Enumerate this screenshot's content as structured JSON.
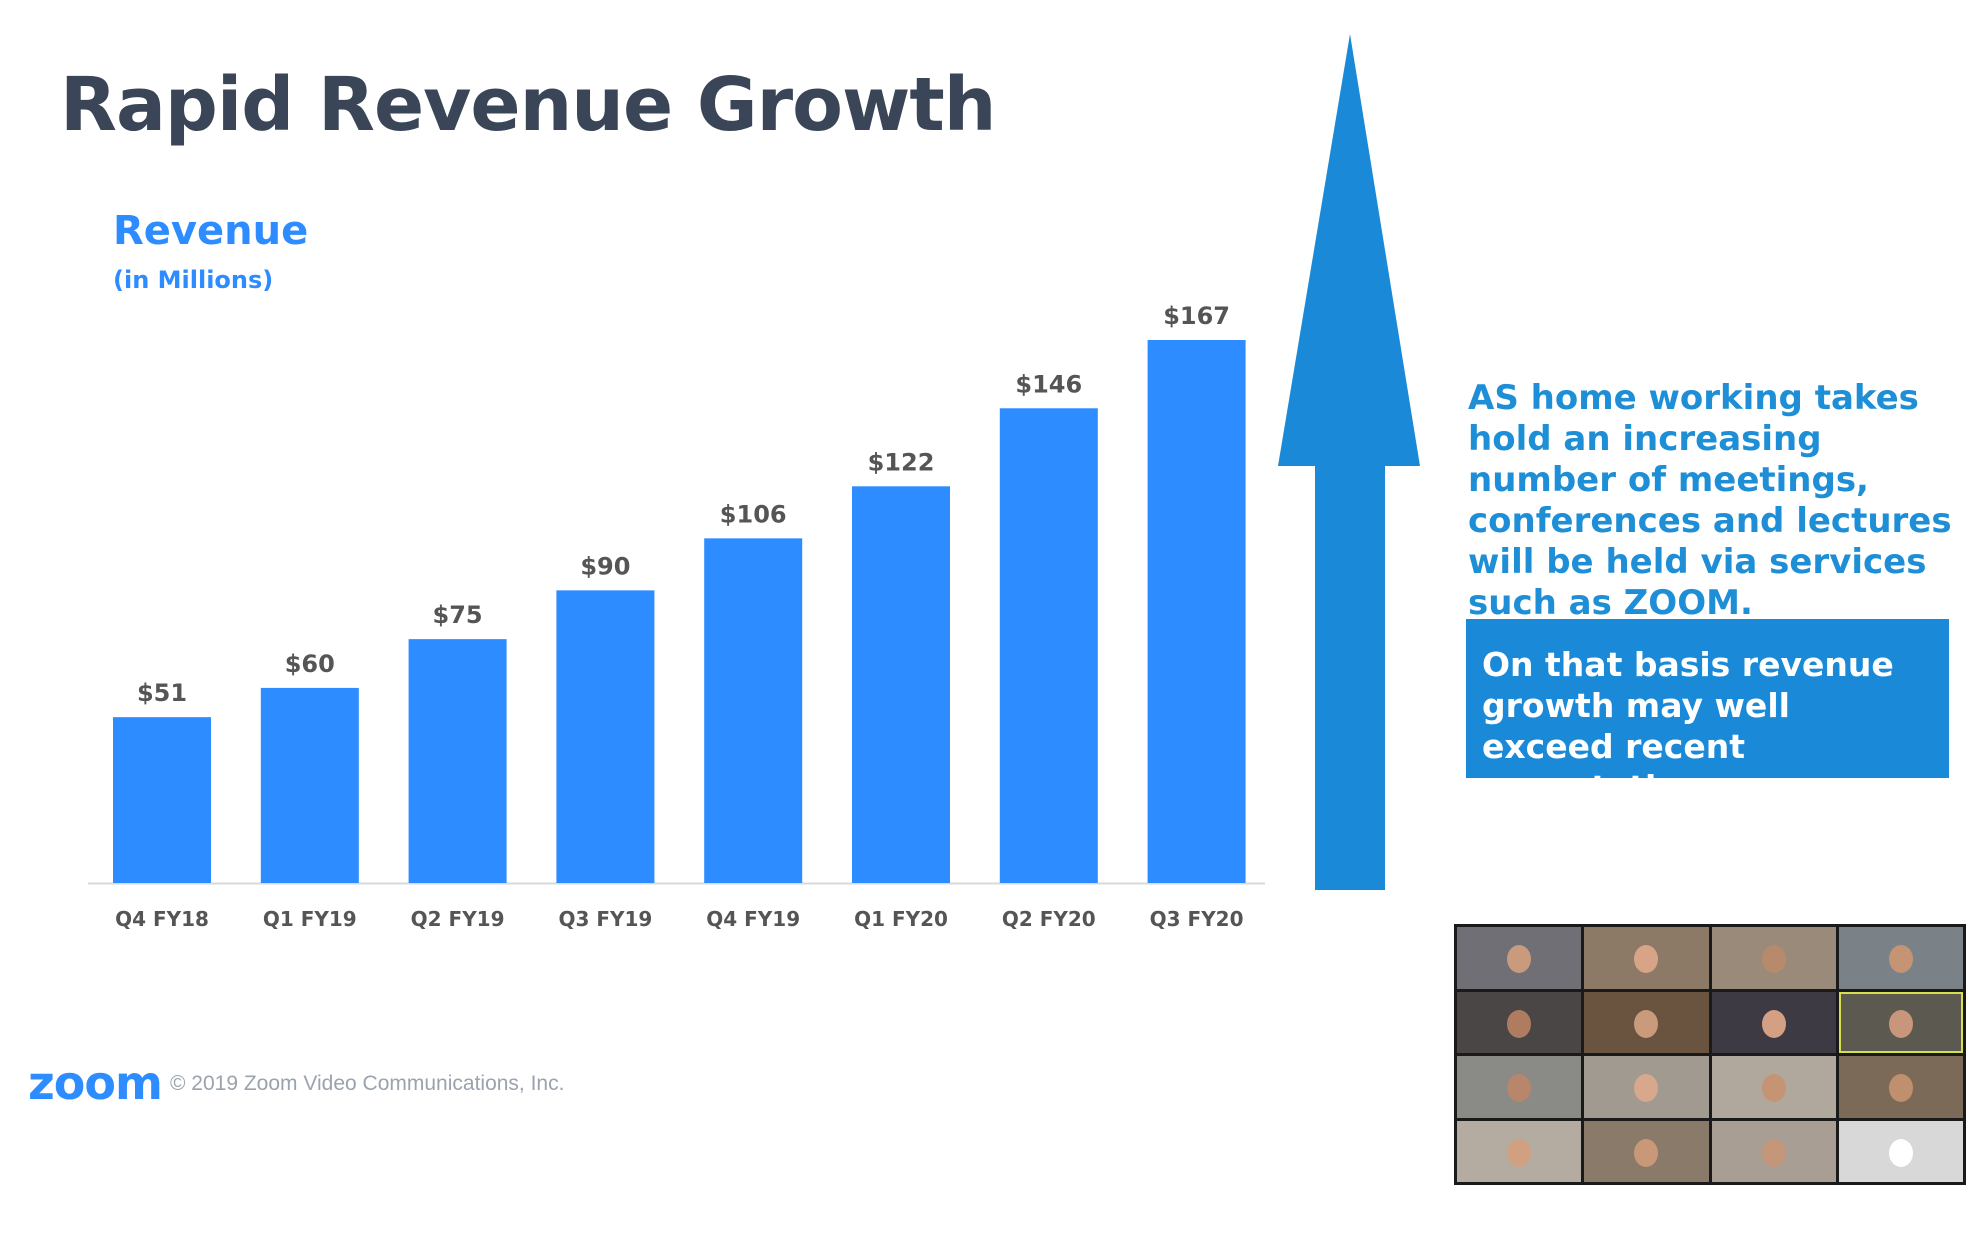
{
  "slide": {
    "title": "Rapid Revenue Growth",
    "chart_label": "Revenue",
    "chart_sublabel": "(in Millions)",
    "note": "AS home working takes hold an increasing number of meetings, conferences and lectures will be held via services such as ZOOM.",
    "box_text": "On that basis revenue growth may well exceed recent expectations.",
    "logo": "zoom",
    "copyright": "© 2019 Zoom Video Communications, Inc."
  },
  "colors": {
    "bar": "#2d8cff",
    "arrow": "#1a8ad8",
    "title": "#3a4658",
    "axis_text": "#555555"
  },
  "video_grid": {
    "tiles": [
      {
        "name": "",
        "bg": "#6f6f75",
        "skin": "#c99a7c"
      },
      {
        "name": "",
        "bg": "#8c7a66",
        "skin": "#d8a488"
      },
      {
        "name": "",
        "bg": "#9a8a7a",
        "skin": "#b88a6c"
      },
      {
        "name": "",
        "bg": "#7a8288",
        "skin": "#c49474"
      },
      {
        "name": "",
        "bg": "#4a4646",
        "skin": "#b07c60"
      },
      {
        "name": "",
        "bg": "#6a5440",
        "skin": "#c99a7c"
      },
      {
        "name": "",
        "bg": "#3e3a44",
        "skin": "#d4a084"
      },
      {
        "name": "",
        "bg": "#5c5a50",
        "skin": "#c8967a",
        "active": true
      },
      {
        "name": "",
        "bg": "#8a8a86",
        "skin": "#b8866a"
      },
      {
        "name": "",
        "bg": "#a09a90",
        "skin": "#d8a88c"
      },
      {
        "name": "",
        "bg": "#b0a89c",
        "skin": "#c49474"
      },
      {
        "name": "",
        "bg": "#7c6a58",
        "skin": "#c0906e"
      },
      {
        "name": "",
        "bg": "#b4aca0",
        "skin": "#d0a080"
      },
      {
        "name": "",
        "bg": "#8a7a6a",
        "skin": "#c89878"
      },
      {
        "name": "",
        "bg": "#a89e94",
        "skin": "#c4967a"
      },
      {
        "name": "",
        "bg": "#d8d8d8",
        "skin": "#ffffff"
      }
    ]
  },
  "chart_data": {
    "type": "bar",
    "categories": [
      "Q4 FY18",
      "Q1 FY19",
      "Q2 FY19",
      "Q3 FY19",
      "Q4 FY19",
      "Q1 FY20",
      "Q2 FY20",
      "Q3 FY20"
    ],
    "values": [
      51,
      60,
      75,
      90,
      106,
      122,
      146,
      167
    ],
    "data_labels": [
      "$51",
      "$60",
      "$75",
      "$90",
      "$106",
      "$122",
      "$146",
      "$167"
    ],
    "title": "Revenue",
    "subtitle": "(in Millions)",
    "xlabel": "",
    "ylabel": "",
    "ylim": [
      0,
      167
    ],
    "grid": false,
    "legend": "none"
  }
}
